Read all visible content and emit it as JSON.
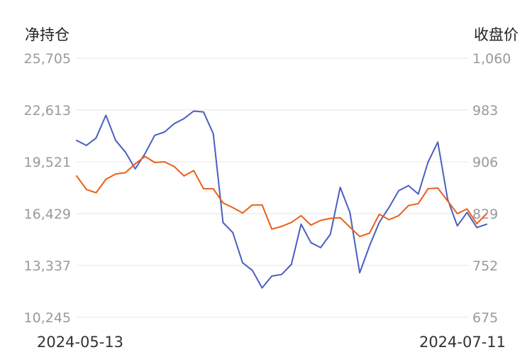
{
  "chart_data": {
    "type": "line",
    "left_axis_title": "净持仓",
    "right_axis_title": "收盘价",
    "left_ticks": [
      "25,705",
      "22,613",
      "19,521",
      "16,429",
      "13,337",
      "10,245"
    ],
    "right_ticks": [
      "1,060",
      "983",
      "906",
      "829",
      "752",
      "675"
    ],
    "left_range": [
      10245,
      25705
    ],
    "right_range": [
      675,
      1060
    ],
    "x_start_label": "2024-05-13",
    "x_end_label": "2024-07-11",
    "grid": true,
    "series": [
      {
        "axis": "left",
        "color": "#4a5fc1",
        "values": [
          20800,
          20500,
          20950,
          22300,
          20800,
          20100,
          19100,
          20000,
          21100,
          21300,
          21800,
          22100,
          22550,
          22500,
          21200,
          15900,
          15300,
          13500,
          13050,
          12000,
          12700,
          12800,
          13400,
          15800,
          14700,
          14400,
          15200,
          18000,
          16500,
          12900,
          14500,
          15900,
          16800,
          17800,
          18100,
          17600,
          19500,
          20700,
          17300,
          15700,
          16500,
          15600,
          15800
        ]
      },
      {
        "axis": "right",
        "color": "#ee5d18",
        "values": [
          885,
          865,
          860,
          880,
          888,
          890,
          903,
          914,
          905,
          906,
          899,
          885,
          893,
          866,
          866,
          845,
          838,
          830,
          842,
          842,
          806,
          810,
          816,
          826,
          812,
          819,
          822,
          823,
          809,
          795,
          800,
          828,
          820,
          826,
          841,
          844,
          866,
          867,
          848,
          829,
          836,
          814,
          829
        ]
      }
    ]
  }
}
